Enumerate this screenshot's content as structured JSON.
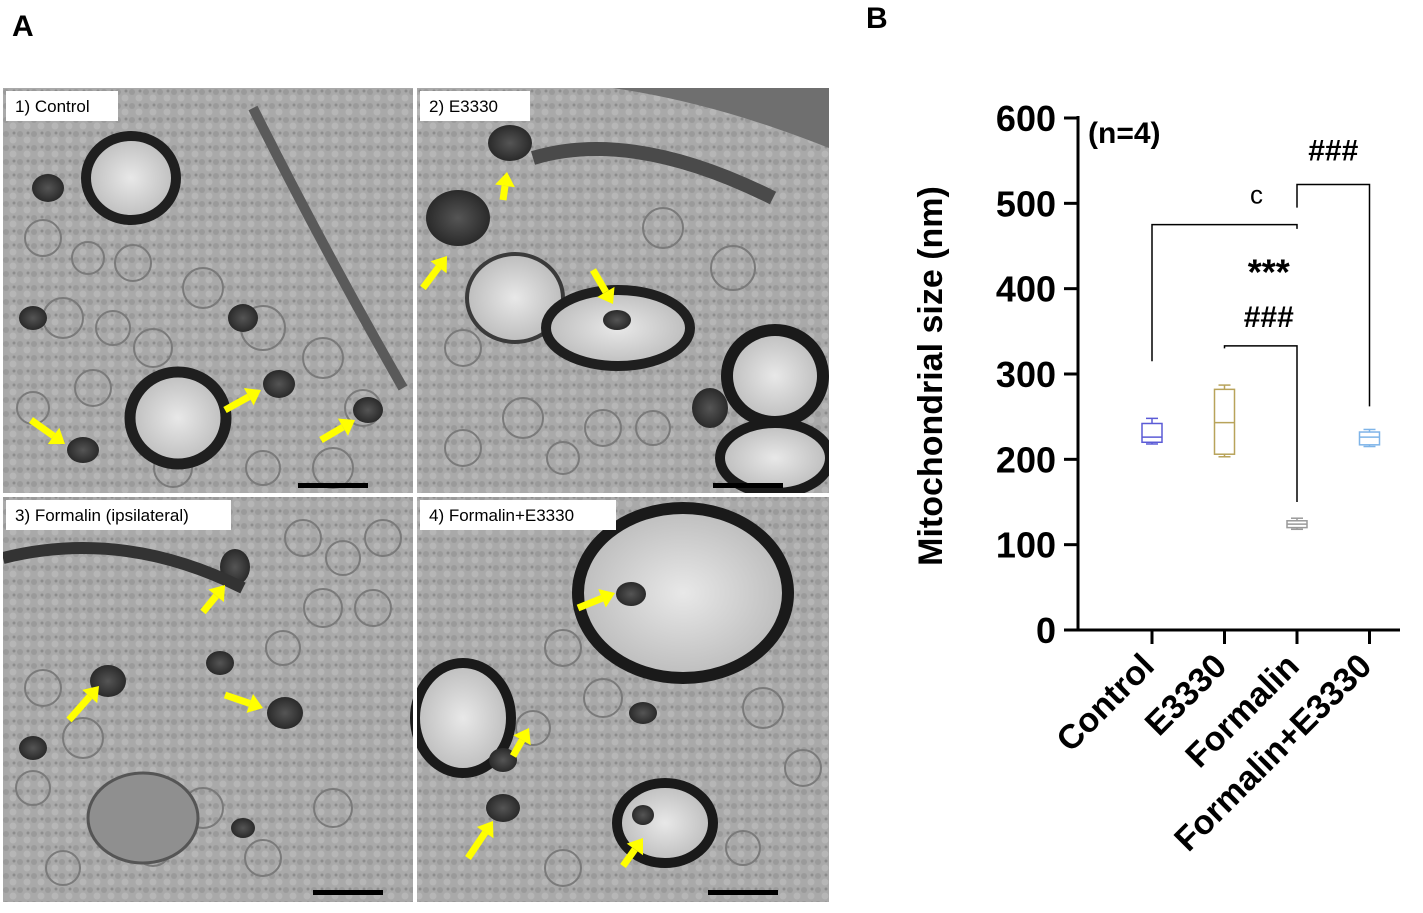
{
  "panel_a": {
    "letter": "A",
    "micrographs": [
      {
        "label": "1) Control"
      },
      {
        "label": "2) E3330"
      },
      {
        "label": "3) Formalin (ipsilateral)"
      },
      {
        "label": "4) Formalin+E3330"
      }
    ],
    "arrow_color": "#ffff00"
  },
  "panel_b": {
    "letter": "B"
  },
  "chart_data": {
    "type": "box",
    "ylabel": "Mitochondrial size (nm)",
    "ylim": [
      0,
      600
    ],
    "yticks": [
      0,
      100,
      200,
      300,
      400,
      500,
      600
    ],
    "categories": [
      "Control",
      "E3330",
      "Formalin",
      "Formalin+E3330"
    ],
    "annotation": "(n=4)",
    "series": [
      {
        "category": "Control",
        "min": 218,
        "q1": 220,
        "median": 226,
        "q3": 242,
        "max": 248,
        "color": "#5b5bd6"
      },
      {
        "category": "E3330",
        "min": 203,
        "q1": 206,
        "median": 243,
        "q3": 282,
        "max": 287,
        "color": "#b8a35a"
      },
      {
        "category": "Formalin",
        "min": 118,
        "q1": 120,
        "median": 124,
        "q3": 128,
        "max": 131,
        "color": "#9a9a9a"
      },
      {
        "category": "Formalin+E3330",
        "min": 215,
        "q1": 217,
        "median": 226,
        "q3": 232,
        "max": 235,
        "color": "#7fb4e8"
      }
    ],
    "significance": [
      {
        "from": "Control",
        "to": "Formalin",
        "label": "c"
      },
      {
        "from": "E3330",
        "to": "Formalin",
        "label": "***"
      },
      {
        "from": "E3330",
        "to": "Formalin",
        "label": "###"
      },
      {
        "from": "Formalin",
        "to": "Formalin+E3330",
        "label": "###"
      }
    ]
  }
}
